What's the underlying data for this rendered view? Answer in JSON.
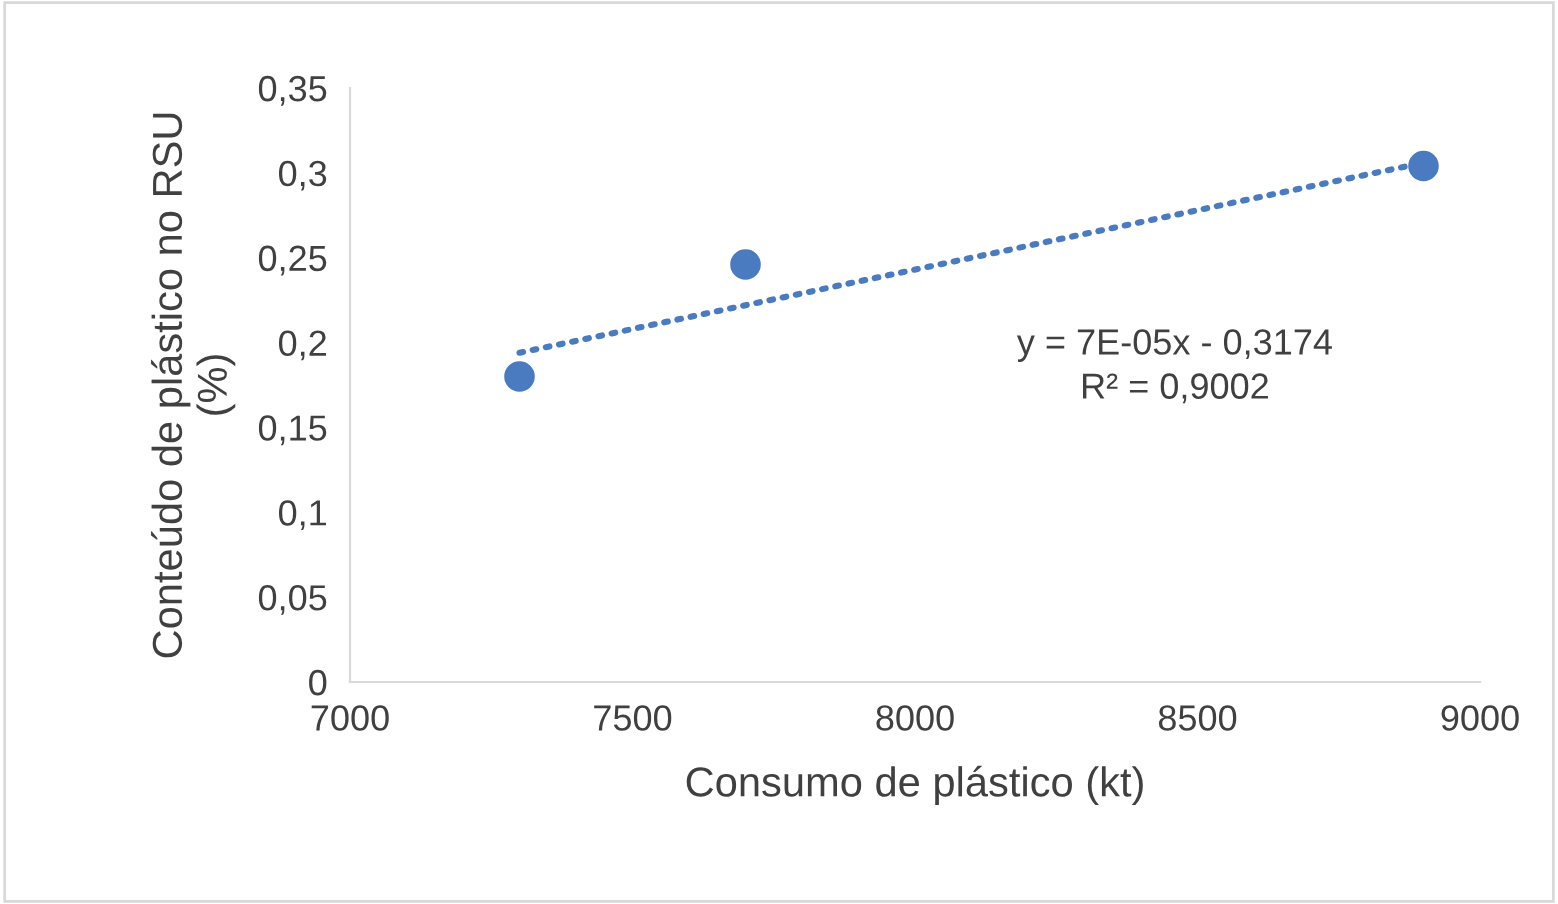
{
  "chart_data": {
    "type": "scatter",
    "xlabel": "Consumo de plástico (kt)",
    "ylabel": "Conteúdo de plástico no RSU\n(%)",
    "series": [
      {
        "color": "#4a7bc0",
        "x": [
          7300,
          7700,
          8900
        ],
        "values": [
          0.18,
          0.246,
          0.304
        ],
        "marker": "circle"
      },
      {
        "type": "line",
        "color": "#4a7bc0",
        "x": [
          7300,
          8900
        ],
        "values": [
          0.194,
          0.306
        ],
        "line_style": "dotted",
        "marker": "none"
      }
    ],
    "xlim": [
      7000,
      9000
    ],
    "xticks": [
      7000,
      7500,
      8000,
      8500,
      9000
    ],
    "ylim": [
      0,
      0.35
    ],
    "yticks": [
      {
        "value": 0,
        "label": "0"
      },
      {
        "value": 0.05,
        "label": "0,05"
      },
      {
        "value": 0.1,
        "label": "0,1"
      },
      {
        "value": 0.15,
        "label": "0,15"
      },
      {
        "value": 0.2,
        "label": "0,2"
      },
      {
        "value": 0.25,
        "label": "0,25"
      },
      {
        "value": 0.3,
        "label": "0,3"
      },
      {
        "value": 0.35,
        "label": "0,35"
      }
    ],
    "grid": false,
    "legend": false,
    "annotations": [
      "y = 7E-05x - 0,3174\nR² = 0,9002"
    ]
  }
}
